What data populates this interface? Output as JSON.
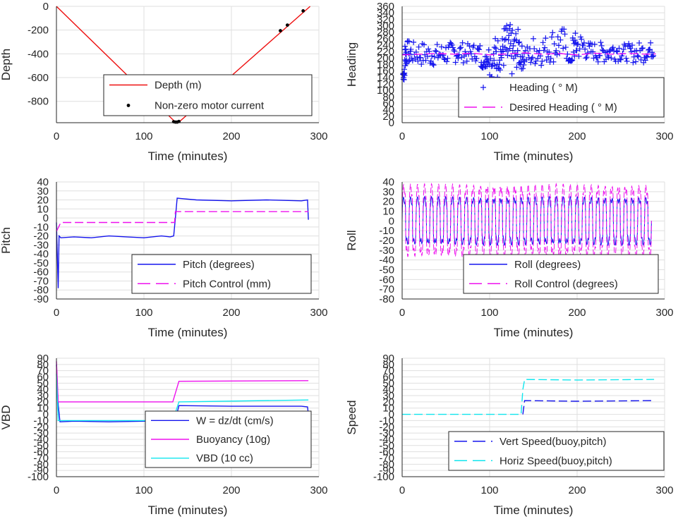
{
  "colors": {
    "grid": "#dfdfdf",
    "axis": "#262626",
    "blue": "#1515ee",
    "magenta": "#ee10ee",
    "cyan": "#10e6ee",
    "red": "#ee1010",
    "black": "#000000"
  },
  "chart_data": [
    {
      "type": "line",
      "xlabel": "Time (minutes)",
      "ylabel": "Depth",
      "xlim": [
        0,
        300
      ],
      "ylim": [
        -980,
        0
      ],
      "xticks": [
        "0",
        "100",
        "200",
        "300"
      ],
      "yticks": [
        "0",
        "-200",
        "-400",
        "-600",
        "-800"
      ],
      "grid": true,
      "legend": "center-bottom",
      "series": [
        {
          "name": "Depth (m)",
          "style": "solid",
          "color": "red",
          "x": [
            0,
            136,
            140,
            290
          ],
          "y": [
            0,
            -975,
            -975,
            0
          ]
        },
        {
          "name": "Non-zero motor current",
          "style": "dots",
          "color": "black",
          "x": [
            134,
            136,
            138,
            140,
            256,
            264,
            282
          ],
          "y": [
            -972,
            -975,
            -975,
            -970,
            -205,
            -158,
            -38
          ]
        }
      ]
    },
    {
      "type": "line",
      "xlabel": "Time (minutes)",
      "ylabel": "Heading",
      "xlim": [
        0,
        300
      ],
      "ylim": [
        0,
        360
      ],
      "xticks": [
        "0",
        "100",
        "200",
        "300"
      ],
      "yticks": [
        "0",
        "20",
        "40",
        "60",
        "80",
        "100",
        "120",
        "140",
        "160",
        "180",
        "200",
        "220",
        "240",
        "260",
        "280",
        "300",
        "320",
        "340",
        "360"
      ],
      "grid": true,
      "legend": "bottom-right",
      "series": [
        {
          "name": "Heading ( ° M)",
          "style": "plus",
          "color": "blue",
          "x": [
            1,
            3,
            5,
            10,
            20,
            30,
            40,
            50,
            60,
            70,
            80,
            90,
            95,
            100,
            105,
            110,
            115,
            120,
            125,
            130,
            135,
            140,
            150,
            160,
            170,
            180,
            190,
            195,
            200,
            210,
            220,
            230,
            240,
            250,
            260,
            270,
            280,
            288
          ],
          "y": [
            130,
            170,
            255,
            180,
            250,
            175,
            245,
            180,
            250,
            185,
            245,
            190,
            170,
            240,
            130,
            270,
            160,
            305,
            140,
            290,
            165,
            240,
            175,
            270,
            185,
            295,
            190,
            195,
            280,
            195,
            250,
            185,
            255,
            190,
            245,
            185,
            250,
            200
          ]
        },
        {
          "name": "Desired Heading ( ° M)",
          "style": "dashed",
          "color": "magenta",
          "x": [
            0,
            20,
            40,
            60,
            80,
            100,
            120,
            140,
            160,
            180,
            200,
            220,
            240,
            260,
            280,
            290
          ],
          "y": [
            210,
            212,
            214,
            212,
            215,
            210,
            213,
            216,
            212,
            214,
            210,
            215,
            212,
            214,
            212,
            213
          ]
        }
      ]
    },
    {
      "type": "line",
      "xlabel": "Time (minutes)",
      "ylabel": "Pitch",
      "xlim": [
        0,
        300
      ],
      "ylim": [
        -90,
        40
      ],
      "xticks": [
        "0",
        "100",
        "200",
        "300"
      ],
      "yticks": [
        "40",
        "30",
        "20",
        "10",
        "0",
        "-10",
        "-20",
        "-30",
        "-40",
        "-50",
        "-60",
        "-70",
        "-80",
        "-90"
      ],
      "grid": true,
      "legend": "bottom-right",
      "series": [
        {
          "name": "Pitch (degrees)",
          "style": "solid",
          "color": "blue",
          "x": [
            0,
            2,
            3,
            5,
            20,
            40,
            60,
            80,
            100,
            120,
            130,
            134,
            136,
            138,
            160,
            200,
            240,
            280,
            287,
            288
          ],
          "y": [
            -5,
            -78,
            -20,
            -22,
            -21,
            -22,
            -20,
            -21,
            -22,
            -20,
            -21,
            -20,
            0,
            22,
            20,
            19,
            20,
            19,
            20,
            -2
          ]
        },
        {
          "name": "Pitch Control (mm)",
          "style": "dashed",
          "color": "magenta",
          "x": [
            0,
            5,
            10,
            135,
            136,
            140,
            200,
            288
          ],
          "y": [
            -15,
            -5,
            -5,
            -5,
            7,
            7,
            7,
            7
          ]
        }
      ]
    },
    {
      "type": "line",
      "xlabel": "Time (minutes)",
      "ylabel": "Roll",
      "xlim": [
        0,
        300
      ],
      "ylim": [
        -80,
        40
      ],
      "xticks": [
        "0",
        "100",
        "200",
        "300"
      ],
      "yticks": [
        "40",
        "30",
        "20",
        "10",
        "0",
        "-10",
        "-20",
        "-30",
        "-40",
        "-50",
        "-60",
        "-70",
        "-80"
      ],
      "grid": true,
      "legend": "bottom-right",
      "series": [
        {
          "name": "Roll (degrees)",
          "style": "oscillating",
          "color": "blue",
          "x": [
            0,
            285
          ],
          "amplitude": 25,
          "cycles": 36
        },
        {
          "name": "Roll Control (degrees)",
          "style": "oscillating-dashed",
          "color": "magenta",
          "x": [
            0,
            285
          ],
          "amplitude": 38,
          "cycles": 36
        }
      ]
    },
    {
      "type": "line",
      "xlabel": "Time (minutes)",
      "ylabel": "VBD",
      "xlim": [
        0,
        300
      ],
      "ylim": [
        -100,
        90
      ],
      "xticks": [
        "0",
        "100",
        "200",
        "300"
      ],
      "yticks": [
        "90",
        "80",
        "70",
        "60",
        "50",
        "40",
        "30",
        "20",
        "10",
        "0",
        "-10",
        "-20",
        "-30",
        "-40",
        "-50",
        "-60",
        "-70",
        "-80",
        "-90",
        "-100"
      ],
      "grid": true,
      "legend": "bottom-right",
      "series": [
        {
          "name": "W = dz/dt (cm/s)",
          "style": "solid",
          "color": "blue",
          "x": [
            0,
            2,
            4,
            20,
            60,
            100,
            130,
            136,
            140,
            200,
            280,
            287,
            288
          ],
          "y": [
            80,
            15,
            -12,
            -11,
            -12,
            -11,
            -10,
            -9,
            14,
            13,
            13,
            12,
            0
          ]
        },
        {
          "name": "Buoyancy (10g)",
          "style": "solid",
          "color": "magenta",
          "x": [
            0,
            2,
            4,
            133,
            140,
            288
          ],
          "y": [
            85,
            20,
            20,
            20,
            53,
            54
          ]
        },
        {
          "name": "VBD (10 cc)",
          "style": "solid",
          "color": "cyan",
          "x": [
            0,
            2,
            4,
            133,
            140,
            288
          ],
          "y": [
            65,
            -10,
            -10,
            -10,
            20,
            23
          ]
        }
      ]
    },
    {
      "type": "line",
      "xlabel": "Time (minutes)",
      "ylabel": "Speed",
      "xlim": [
        0,
        300
      ],
      "ylim": [
        -100,
        90
      ],
      "xticks": [
        "0",
        "100",
        "200",
        "300"
      ],
      "yticks": [
        "90",
        "80",
        "70",
        "60",
        "50",
        "40",
        "30",
        "20",
        "10",
        "0",
        "-10",
        "-20",
        "-30",
        "-40",
        "-50",
        "-60",
        "-70",
        "-80",
        "-90",
        "-100"
      ],
      "grid": true,
      "legend": "bottom-right",
      "series": [
        {
          "name": "Vert Speed(buoy,pitch)",
          "style": "dashed",
          "color": "blue",
          "x": [
            138,
            140,
            200,
            288
          ],
          "y": [
            0,
            22,
            21,
            22
          ]
        },
        {
          "name": "Horiz Speed(buoy,pitch)",
          "style": "dashed",
          "color": "cyan",
          "x": [
            0,
            136,
            138,
            140,
            200,
            288
          ],
          "y": [
            0,
            0,
            40,
            56,
            55,
            56
          ]
        }
      ]
    }
  ]
}
